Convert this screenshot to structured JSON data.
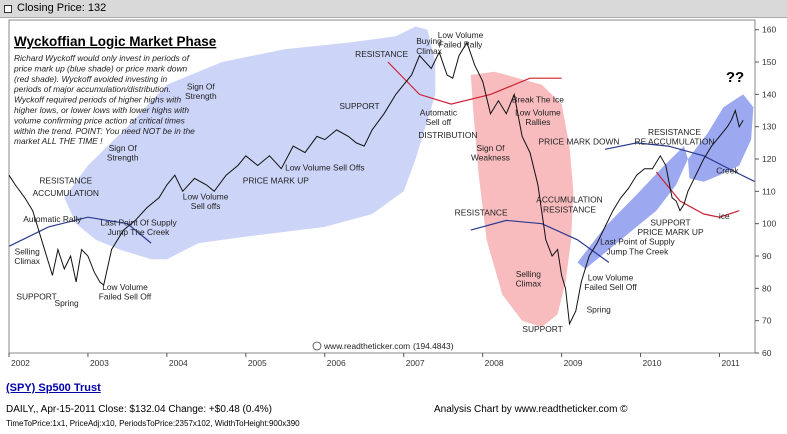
{
  "header": {
    "label": "Closing Price: 132"
  },
  "chart_data": {
    "type": "line",
    "title": "Wyckoffian Logic Market Phase",
    "description": [
      "Richard Wyckoff would only invest in periods of",
      "price mark up (blue shade) or price mark down",
      "(red shade). Wyckoff avoided investing in",
      "periods of major accumulation/distribution.",
      "Wyckoff required periods of higher highs with",
      "higher lows, or lower lows with lower highs with",
      "volume confirming price action at critical times",
      "within the trend. POINT: You need NOT be in the",
      "market ALL THE TIME !"
    ],
    "xlim": [
      2002.0,
      2011.45
    ],
    "ylim": [
      60,
      163
    ],
    "x_ticks": [
      2002,
      2003,
      2004,
      2005,
      2006,
      2007,
      2008,
      2009,
      2010,
      2011
    ],
    "y_ticks": [
      60,
      70,
      80,
      90,
      100,
      110,
      120,
      130,
      140,
      150,
      160
    ],
    "grid": false,
    "series": [
      {
        "x": [
          2002.0,
          2002.08,
          2002.2,
          2002.3,
          2002.4,
          2002.5,
          2002.55,
          2002.62,
          2002.7,
          2002.78,
          2002.85,
          2002.92,
          2003.0,
          2003.08,
          2003.15,
          2003.2,
          2003.3,
          2003.45,
          2003.6,
          2003.75,
          2003.9,
          2004.0,
          2004.1,
          2004.2,
          2004.35,
          2004.5,
          2004.6,
          2004.75,
          2004.9,
          2005.0,
          2005.15,
          2005.3,
          2005.45,
          2005.6,
          2005.75,
          2005.9,
          2006.0,
          2006.15,
          2006.3,
          2006.4,
          2006.5,
          2006.6,
          2006.75,
          2006.9,
          2007.0,
          2007.1,
          2007.2,
          2007.35,
          2007.45,
          2007.55,
          2007.62,
          2007.7,
          2007.8,
          2007.9,
          2008.0,
          2008.1,
          2008.2,
          2008.3,
          2008.4,
          2008.5,
          2008.6,
          2008.7,
          2008.8,
          2008.88,
          2008.95,
          2009.0,
          2009.05,
          2009.1,
          2009.18,
          2009.25,
          2009.35,
          2009.45,
          2009.55,
          2009.65,
          2009.75,
          2009.85,
          2009.95,
          2010.05,
          2010.15,
          2010.25,
          2010.32,
          2010.4,
          2010.45,
          2010.5,
          2010.55,
          2010.6,
          2010.7,
          2010.8,
          2010.9,
          2011.0,
          2011.1,
          2011.15,
          2011.2,
          2011.25,
          2011.3
        ],
        "y": [
          115,
          112,
          108,
          104,
          96,
          88,
          84,
          92,
          86,
          90,
          82,
          92,
          90,
          85,
          82,
          81,
          92,
          98,
          101,
          105,
          108,
          112,
          115,
          110,
          114,
          112,
          110,
          115,
          118,
          121,
          118,
          121,
          117,
          124,
          122,
          127,
          126,
          129,
          127,
          125,
          124,
          129,
          134,
          140,
          143,
          146,
          152,
          148,
          153,
          146,
          145,
          152,
          156,
          149,
          144,
          134,
          138,
          134,
          140,
          127,
          122,
          112,
          95,
          90,
          92,
          84,
          80,
          69,
          73,
          82,
          90,
          94,
          99,
          104,
          108,
          111,
          115,
          117,
          117,
          121,
          118,
          108,
          107,
          104,
          106,
          110,
          115,
          120,
          124,
          127,
          130,
          132,
          135,
          130,
          132
        ]
      }
    ],
    "annotations": [
      {
        "text": "Buying",
        "x": 2007.32,
        "y": 155.5
      },
      {
        "text": "Climax",
        "x": 2007.32,
        "y": 152.5
      },
      {
        "text": "Low Volume",
        "x": 2007.72,
        "y": 157.5
      },
      {
        "text": "Failed Rally",
        "x": 2007.72,
        "y": 154.5
      },
      {
        "text": "RESISTANCE",
        "x": 2006.72,
        "y": 151.5
      },
      {
        "text": "SUPPORT",
        "x": 2006.44,
        "y": 135.5
      },
      {
        "text": "Automatic",
        "x": 2007.44,
        "y": 133.5
      },
      {
        "text": "Sell off",
        "x": 2007.44,
        "y": 130.5
      },
      {
        "text": "DISTRIBUTION",
        "x": 2007.56,
        "y": 126.5
      },
      {
        "text": "Break The Ice",
        "x": 2008.7,
        "y": 137.5
      },
      {
        "text": "Low Volume",
        "x": 2008.7,
        "y": 133.5
      },
      {
        "text": "Rallies",
        "x": 2008.7,
        "y": 130.5
      },
      {
        "text": "Sign Of",
        "x": 2008.1,
        "y": 122.5
      },
      {
        "text": "Weakness",
        "x": 2008.1,
        "y": 119.5
      },
      {
        "text": "PRICE MARK DOWN",
        "x": 2009.22,
        "y": 124.5
      },
      {
        "text": "RESISTANCE",
        "x": 2010.43,
        "y": 127.5
      },
      {
        "text": "RE ACCUMULATION",
        "x": 2010.43,
        "y": 124.5
      },
      {
        "text": "Creek",
        "x": 2011.1,
        "y": 115.5
      },
      {
        "text": "ice",
        "x": 2011.06,
        "y": 101.5
      },
      {
        "text": "ACCUMULATION",
        "x": 2009.1,
        "y": 106.5
      },
      {
        "text": "RESISTANCE",
        "x": 2009.1,
        "y": 103.5
      },
      {
        "text": "RESISTANCE",
        "x": 2007.98,
        "y": 102.5
      },
      {
        "text": "SUPPORT",
        "x": 2010.38,
        "y": 99.5
      },
      {
        "text": "PRICE MARK UP",
        "x": 2010.38,
        "y": 96.5
      },
      {
        "text": "Last Point of Supply",
        "x": 2009.96,
        "y": 93.5
      },
      {
        "text": "Jump The Creek",
        "x": 2009.96,
        "y": 90.5
      },
      {
        "text": "Low Volume",
        "x": 2009.62,
        "y": 82.5
      },
      {
        "text": "Failed Sell Off",
        "x": 2009.62,
        "y": 79.5
      },
      {
        "text": "Selling",
        "x": 2008.58,
        "y": 83.5
      },
      {
        "text": "Climax",
        "x": 2008.58,
        "y": 80.5
      },
      {
        "text": "Spring",
        "x": 2009.47,
        "y": 72.5
      },
      {
        "text": "SUPPORT",
        "x": 2008.76,
        "y": 66.5
      },
      {
        "text": "Sign Of",
        "x": 2004.43,
        "y": 141.5
      },
      {
        "text": "Strength",
        "x": 2004.43,
        "y": 138.5
      },
      {
        "text": "Sign Of",
        "x": 2003.44,
        "y": 122.5
      },
      {
        "text": "Strength",
        "x": 2003.44,
        "y": 119.5
      },
      {
        "text": "Low Volume Sell Offs",
        "x": 2006.0,
        "y": 116.5
      },
      {
        "text": "PRICE MARK UP",
        "x": 2005.38,
        "y": 112.5
      },
      {
        "text": "Low Volume",
        "x": 2004.49,
        "y": 107.5
      },
      {
        "text": "Sell offs",
        "x": 2004.49,
        "y": 104.5
      },
      {
        "text": "Last Point Of Supply",
        "x": 2003.64,
        "y": 99.5
      },
      {
        "text": "Jump The Creek",
        "x": 2003.64,
        "y": 96.5
      },
      {
        "text": "RESISTANCE",
        "x": 2002.72,
        "y": 112.5
      },
      {
        "text": "ACCUMULATION",
        "x": 2002.72,
        "y": 108.5
      },
      {
        "text": "Automatic Rally",
        "x": 2002.55,
        "y": 100.5
      },
      {
        "text": "Selling",
        "x": 2002.23,
        "y": 90.5
      },
      {
        "text": "Climax",
        "x": 2002.23,
        "y": 87.5
      },
      {
        "text": "SUPPORT",
        "x": 2002.35,
        "y": 76.5
      },
      {
        "text": "Spring",
        "x": 2002.73,
        "y": 74.5
      },
      {
        "text": "Low Volume",
        "x": 2003.47,
        "y": 79.5
      },
      {
        "text": "Failed Sell Off",
        "x": 2003.47,
        "y": 76.5
      }
    ],
    "mystery_mark": "??",
    "watermark": "www.readtheticker.com",
    "watermark_value": "(194.4843)"
  },
  "footer": {
    "symbol_link": "(SPY) Sp500 Trust",
    "quote_line": "DAILY,, Apr-15-2011  Close: $132.04  Change: +$0.48  (0.4%)",
    "credit": "Analysis Chart by www.readtheticker.com ©",
    "params": "TimeToPrice:1x1, PriceAdj:x10, PeriodsToPrice:2357x102, WidthToHeight:900x390"
  },
  "colors": {
    "markup_shade": "#aab8f2",
    "markdown_shade": "#f5a6aa",
    "price_line": "#111111",
    "support_line": "#2b3a8f",
    "resistance_line": "#cc2233",
    "link": "#0000aa"
  }
}
